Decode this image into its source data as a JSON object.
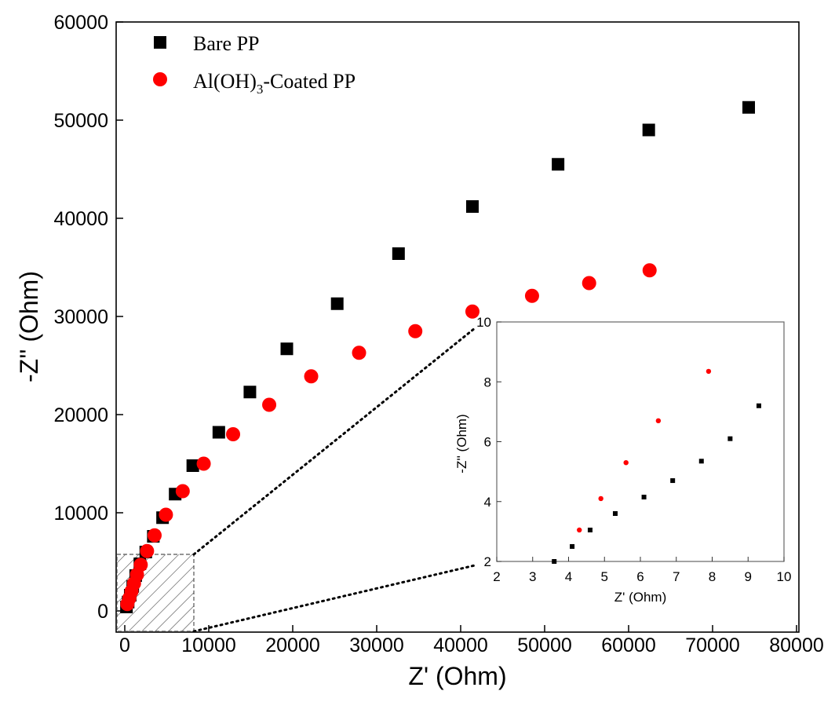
{
  "chart_data": [
    {
      "type": "scatter",
      "xlabel": "Z' (Ohm)",
      "ylabel": "-Z'' (Ohm)",
      "xlim": [
        0,
        80000
      ],
      "ylim": [
        0,
        60000
      ],
      "x_ticks": [
        "0",
        "10000",
        "20000",
        "30000",
        "40000",
        "50000",
        "60000",
        "70000",
        "80000"
      ],
      "y_ticks": [
        "0",
        "10000",
        "20000",
        "30000",
        "40000",
        "50000",
        "60000"
      ],
      "legend_position": "top-left",
      "grid": false,
      "series": [
        {
          "name": "Bare PP",
          "marker": "square",
          "color": "#000000",
          "points": [
            [
              200,
              400
            ],
            [
              400,
              900
            ],
            [
              650,
              1600
            ],
            [
              950,
              2500
            ],
            [
              1300,
              3600
            ],
            [
              1800,
              4800
            ],
            [
              2500,
              6000
            ],
            [
              3400,
              7600
            ],
            [
              4500,
              9500
            ],
            [
              6000,
              11900
            ],
            [
              8100,
              14800
            ],
            [
              11200,
              18200
            ],
            [
              14900,
              22300
            ],
            [
              19300,
              26700
            ],
            [
              25300,
              31300
            ],
            [
              32600,
              36400
            ],
            [
              41400,
              41200
            ],
            [
              51600,
              45500
            ],
            [
              62400,
              49000
            ],
            [
              74300,
              51300
            ]
          ]
        },
        {
          "name": "Al(OH)3-Coated PP",
          "legend_main": "Al(OH)",
          "legend_sub": "3",
          "legend_tail": "-Coated PP",
          "marker": "circle",
          "color": "#ff0000",
          "points": [
            [
              300,
              700
            ],
            [
              550,
              1300
            ],
            [
              800,
              2000
            ],
            [
              1100,
              2800
            ],
            [
              1450,
              3700
            ],
            [
              1900,
              4700
            ],
            [
              2650,
              6100
            ],
            [
              3550,
              7700
            ],
            [
              4900,
              9800
            ],
            [
              6900,
              12200
            ],
            [
              9400,
              15000
            ],
            [
              12900,
              18000
            ],
            [
              17200,
              21000
            ],
            [
              22200,
              23900
            ],
            [
              27900,
              26300
            ],
            [
              34600,
              28500
            ],
            [
              41400,
              30500
            ],
            [
              48500,
              32100
            ],
            [
              55300,
              33400
            ],
            [
              62500,
              34700
            ]
          ]
        }
      ]
    },
    {
      "type": "scatter",
      "role": "inset",
      "xlabel": "Z' (Ohm)",
      "ylabel": "-Z'' (Ohm)",
      "xlim": [
        2,
        10
      ],
      "ylim": [
        2,
        10
      ],
      "x_ticks": [
        "2",
        "3",
        "4",
        "5",
        "6",
        "7",
        "8",
        "9",
        "10"
      ],
      "y_ticks": [
        "2",
        "4",
        "6",
        "8",
        "10"
      ],
      "series": [
        {
          "name": "Bare PP",
          "marker": "square",
          "color": "#000000",
          "points": [
            [
              3.6,
              2.0
            ],
            [
              4.1,
              2.5
            ],
            [
              4.6,
              3.05
            ],
            [
              5.3,
              3.6
            ],
            [
              6.1,
              4.15
            ],
            [
              6.9,
              4.7
            ],
            [
              7.7,
              5.35
            ],
            [
              8.5,
              6.1
            ],
            [
              9.3,
              7.2
            ]
          ]
        },
        {
          "name": "Al(OH)3-Coated PP",
          "marker": "circle",
          "color": "#ff0000",
          "points": [
            [
              4.3,
              3.05
            ],
            [
              4.9,
              4.1
            ],
            [
              5.6,
              5.3
            ],
            [
              6.5,
              6.7
            ],
            [
              7.9,
              8.35
            ]
          ]
        }
      ]
    }
  ]
}
